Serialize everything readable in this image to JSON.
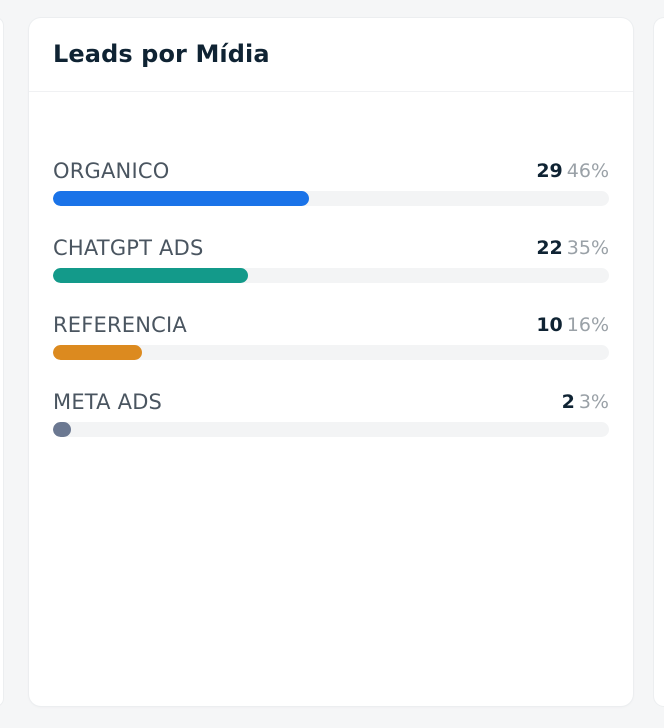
{
  "widget": {
    "title": "Leads por Mídia",
    "items": [
      {
        "label": "ORGANICO",
        "count": "29",
        "percent": "46%",
        "share": 0.46,
        "color": "#1a73e8"
      },
      {
        "label": "CHATGPT ADS",
        "count": "22",
        "percent": "35%",
        "share": 0.35,
        "color": "#139a8a"
      },
      {
        "label": "REFERENCIA",
        "count": "10",
        "percent": "16%",
        "share": 0.16,
        "color": "#dc8a1f"
      },
      {
        "label": "META ADS",
        "count": "2",
        "percent": "3%",
        "share": 0.03,
        "color": "#6b7891"
      }
    ]
  }
}
